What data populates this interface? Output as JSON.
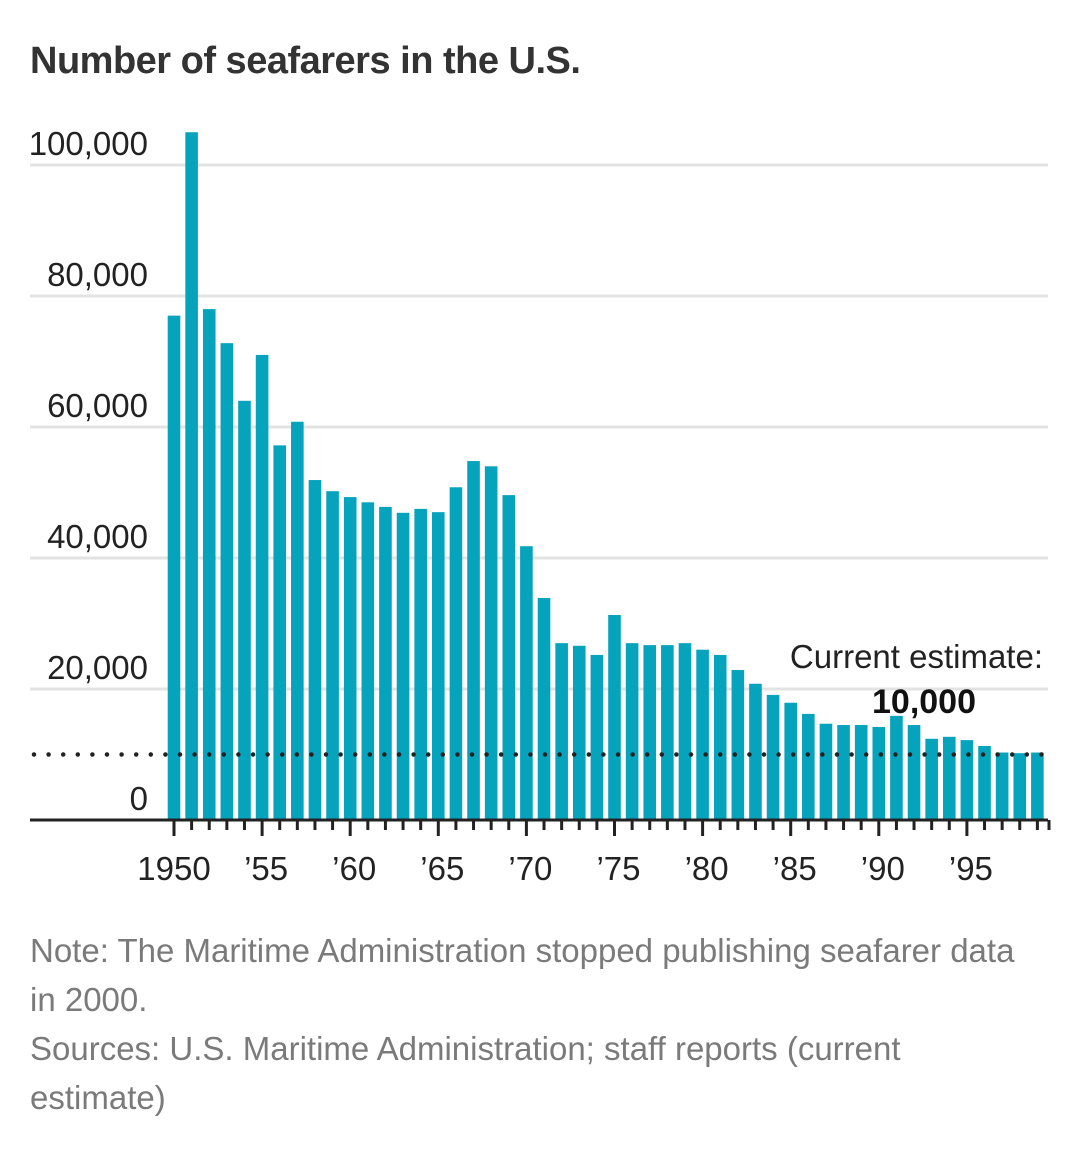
{
  "chart_data": {
    "type": "bar",
    "title": "Number of seafarers in the U.S.",
    "xlabel": "",
    "ylabel": "",
    "ylim": [
      0,
      100000
    ],
    "grid": true,
    "y_ticks": [
      0,
      20000,
      40000,
      60000,
      80000,
      100000
    ],
    "y_tick_labels": [
      "0",
      "20,000",
      "40,000",
      "60,000",
      "80,000",
      "100,000"
    ],
    "x_tick_labels": [
      {
        "year": 1950,
        "label": "1950"
      },
      {
        "year": 1955,
        "label": "’55"
      },
      {
        "year": 1960,
        "label": "’60"
      },
      {
        "year": 1965,
        "label": "’65"
      },
      {
        "year": 1970,
        "label": "’70"
      },
      {
        "year": 1975,
        "label": "’75"
      },
      {
        "year": 1980,
        "label": "’80"
      },
      {
        "year": 1985,
        "label": "’85"
      },
      {
        "year": 1990,
        "label": "’90"
      },
      {
        "year": 1995,
        "label": "’95"
      }
    ],
    "categories": [
      1950,
      1951,
      1952,
      1953,
      1954,
      1955,
      1956,
      1957,
      1958,
      1959,
      1960,
      1961,
      1962,
      1963,
      1964,
      1965,
      1966,
      1967,
      1968,
      1969,
      1970,
      1971,
      1972,
      1973,
      1974,
      1975,
      1976,
      1977,
      1978,
      1979,
      1980,
      1981,
      1982,
      1983,
      1984,
      1985,
      1986,
      1987,
      1988,
      1989,
      1990,
      1991,
      1992,
      1993,
      1994,
      1995,
      1996,
      1997,
      1998,
      1999
    ],
    "values": [
      77000,
      105000,
      78000,
      72800,
      64000,
      71000,
      57200,
      60800,
      51900,
      50200,
      49300,
      48500,
      47800,
      46900,
      47500,
      47000,
      50800,
      54800,
      54000,
      49600,
      41800,
      33900,
      27000,
      26600,
      25200,
      31300,
      27000,
      26700,
      26700,
      27000,
      26000,
      25200,
      22900,
      20800,
      19100,
      17900,
      16200,
      14700,
      14500,
      14500,
      14200,
      15900,
      14500,
      12400,
      12700,
      12200,
      11300,
      10300,
      10200,
      10300
    ],
    "bar_color": "#06a3bd",
    "reference_line": {
      "value": 10000,
      "style": "dotted"
    },
    "annotation": {
      "label": "Current estimate:",
      "value": "10,000"
    }
  },
  "notes": {
    "note": "Note: The Maritime Administration stopped publishing seafarer data in 2000.",
    "sources": "Sources: U.S. Maritime Administration; staff reports (current estimate)"
  }
}
